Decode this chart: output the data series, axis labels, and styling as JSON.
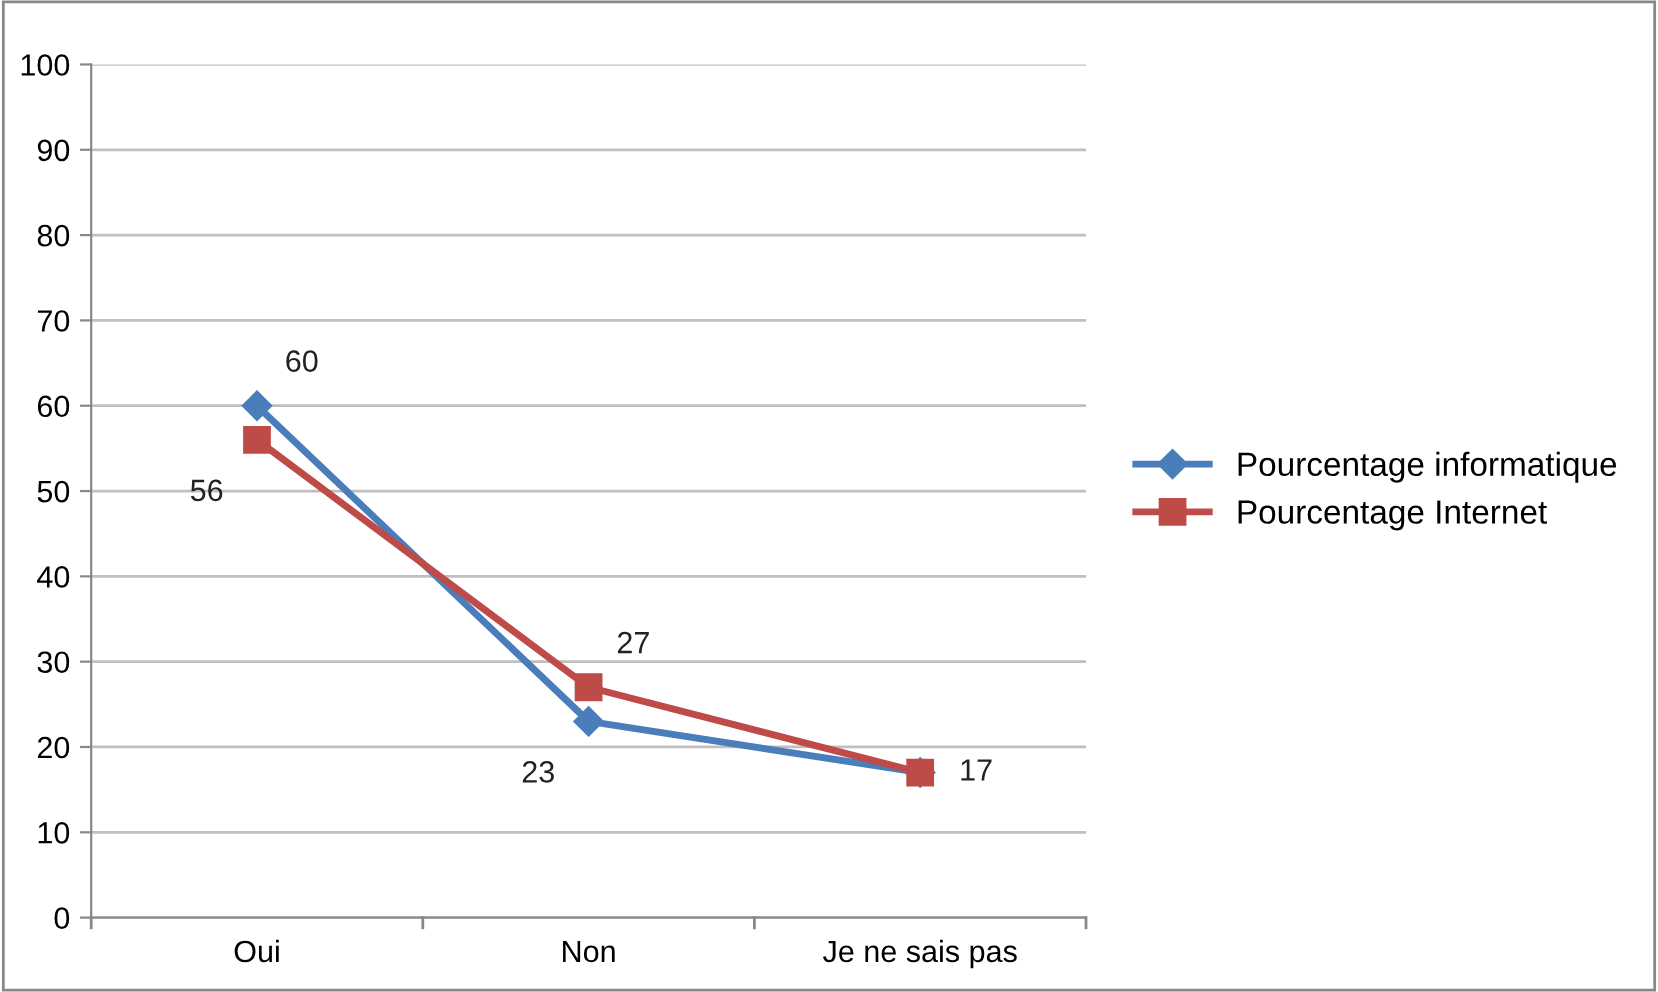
{
  "chart_data": {
    "type": "line",
    "categories": [
      "Oui",
      "Non",
      "Je ne sais pas"
    ],
    "series": [
      {
        "name": "Pourcentage informatique",
        "color": "#4a7ebb",
        "marker": "diamond",
        "values": [
          60,
          23,
          17
        ],
        "value_labels": [
          "60",
          "23",
          null
        ]
      },
      {
        "name": "Pourcentage Internet",
        "color": "#be4b48",
        "marker": "square",
        "values": [
          56,
          27,
          17
        ],
        "value_labels": [
          "56",
          "27",
          "17"
        ]
      }
    ],
    "ylim": [
      0,
      100
    ],
    "yticks": [
      0,
      10,
      20,
      30,
      40,
      50,
      60,
      70,
      80,
      90,
      100
    ],
    "grid": "y",
    "legend": "right",
    "line_style": "solid"
  }
}
